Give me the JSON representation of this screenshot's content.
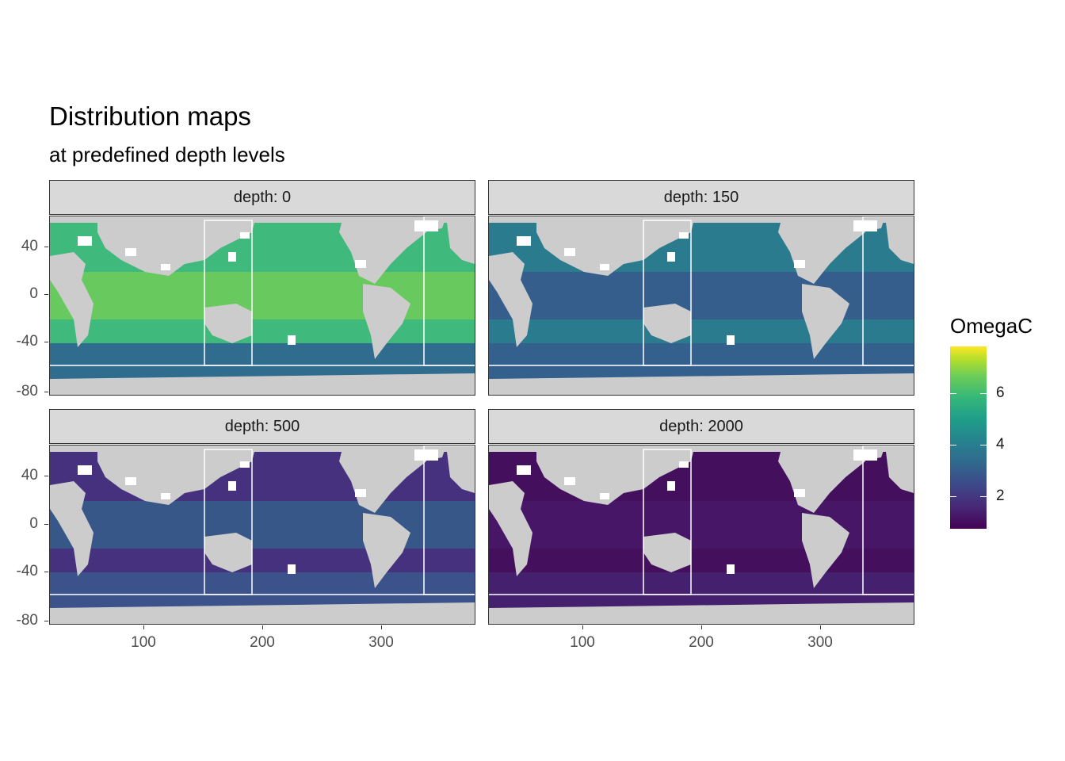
{
  "title": "Distribution maps",
  "subtitle": "at predefined depth levels",
  "panels": [
    {
      "label": "depth: 0",
      "ocean_color": "#3fb97c",
      "south_color": "#2f6c8e",
      "band_color": "#7ad151"
    },
    {
      "label": "depth: 150",
      "ocean_color": "#2b7b8e",
      "south_color": "#33608d",
      "band_color": "#3b528b"
    },
    {
      "label": "depth: 500",
      "ocean_color": "#46317e",
      "south_color": "#3b528b",
      "band_color": "#31688e"
    },
    {
      "label": "depth: 2000",
      "ocean_color": "#440f5c",
      "south_color": "#45206e",
      "band_color": "#481a6c"
    }
  ],
  "y_axis": {
    "ticks": [
      "40",
      "0",
      "-40",
      "-80"
    ]
  },
  "x_axis": {
    "ticks": [
      "100",
      "200",
      "300"
    ]
  },
  "legend": {
    "title": "OmegaC",
    "ticks": [
      "6",
      "4",
      "2"
    ],
    "colors": [
      "#440154",
      "#31688e",
      "#35b779",
      "#fde725"
    ]
  }
}
